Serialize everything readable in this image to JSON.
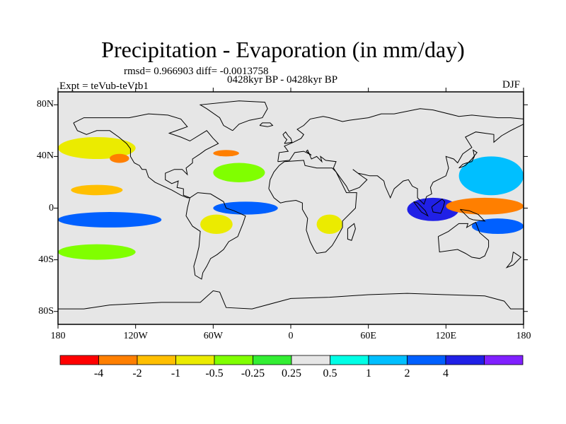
{
  "title": "Precipitation - Evaporation (in mm/day)",
  "stats_text": "rmsd= 0.966903 diff= -0.0013758",
  "period_text": "0428kyr BP - 0428kyr BP",
  "experiment_text": "Expt = teVub-teVtb1",
  "season_text": "DJF",
  "map": {
    "background_color": "#e6e6e6",
    "coastline_color": "#000000",
    "lon_range": [
      -180,
      180
    ],
    "lat_range": [
      -90,
      90
    ],
    "x_ticks": [
      {
        "lon": -180,
        "label": "180"
      },
      {
        "lon": -120,
        "label": "120W"
      },
      {
        "lon": -60,
        "label": "60W"
      },
      {
        "lon": 0,
        "label": "0"
      },
      {
        "lon": 60,
        "label": "60E"
      },
      {
        "lon": 120,
        "label": "120E"
      },
      {
        "lon": 180,
        "label": "180"
      }
    ],
    "y_ticks": [
      {
        "lat": 80,
        "label": "80N"
      },
      {
        "lat": 40,
        "label": "40N"
      },
      {
        "lat": 0,
        "label": "0"
      },
      {
        "lat": -40,
        "label": "40S"
      },
      {
        "lat": -80,
        "label": "80S"
      }
    ]
  },
  "colorbar": {
    "colors": [
      "#ff0000",
      "#ff7f00",
      "#ffbf00",
      "#ebeb00",
      "#80ff00",
      "#33ee33",
      "#e6e6e6",
      "#00ffe6",
      "#00bfff",
      "#0060ff",
      "#2020e6",
      "#8020ff"
    ],
    "labels": [
      "-4",
      "-2",
      "-1",
      "-0.5",
      "-0.25",
      "0.25",
      "0.5",
      "1",
      "2",
      "4"
    ]
  },
  "chart_data": {
    "type": "heatmap",
    "title": "Precipitation - Evaporation (in mm/day)",
    "variable": "Precipitation - Evaporation",
    "units": "mm/day",
    "season": "DJF",
    "rmsd": 0.966903,
    "diff": -0.0013758,
    "levels": [
      -4,
      -2,
      -1,
      -0.5,
      -0.25,
      0.25,
      0.5,
      1,
      2,
      4
    ],
    "xlim": [
      -180,
      180
    ],
    "ylim": [
      -90,
      90
    ],
    "regions": [
      {
        "name": "pacific-itcz-south",
        "lon": [
          -180,
          -100
        ],
        "lat": [
          -15,
          -3
        ],
        "value": 3
      },
      {
        "name": "pacific-itcz-band",
        "lon": [
          -180,
          -90
        ],
        "lat": [
          2,
          8
        ],
        "value": 0.3
      },
      {
        "name": "east-pacific-dry",
        "lon": [
          -170,
          -130
        ],
        "lat": [
          10,
          18
        ],
        "value": -1.5
      },
      {
        "name": "south-pacific-green",
        "lon": [
          -180,
          -120
        ],
        "lat": [
          -40,
          -28
        ],
        "value": -0.5
      },
      {
        "name": "north-pacific-storm",
        "lon": [
          -180,
          -120
        ],
        "lat": [
          38,
          55
        ],
        "value": -0.7
      },
      {
        "name": "north-pacific-red",
        "lon": [
          -140,
          -125
        ],
        "lat": [
          35,
          42
        ],
        "value": -3
      },
      {
        "name": "atlantic-itcz",
        "lon": [
          -60,
          -10
        ],
        "lat": [
          -5,
          5
        ],
        "value": 3
      },
      {
        "name": "amazon-dry",
        "lon": [
          -70,
          -45
        ],
        "lat": [
          -20,
          -5
        ],
        "value": -0.7
      },
      {
        "name": "south-atlantic-cyan",
        "lon": [
          -40,
          10
        ],
        "lat": [
          -30,
          -15
        ],
        "value": 0.4
      },
      {
        "name": "north-atlantic-green",
        "lon": [
          -60,
          -20
        ],
        "lat": [
          20,
          35
        ],
        "value": -0.5
      },
      {
        "name": "north-atlantic-red",
        "lon": [
          -60,
          -40
        ],
        "lat": [
          40,
          45
        ],
        "value": -3
      },
      {
        "name": "europe-cyan",
        "lon": [
          -10,
          40
        ],
        "lat": [
          45,
          65
        ],
        "value": 0.4
      },
      {
        "name": "africa-wet",
        "lon": [
          20,
          40
        ],
        "lat": [
          -20,
          -5
        ],
        "value": -1
      },
      {
        "name": "indian-ocean-cyan",
        "lon": [
          40,
          100
        ],
        "lat": [
          -40,
          -20
        ],
        "value": 0.4
      },
      {
        "name": "maritime-continent-wet",
        "lon": [
          90,
          130
        ],
        "lat": [
          -10,
          8
        ],
        "value": 4
      },
      {
        "name": "west-pacific-dry",
        "lon": [
          120,
          180
        ],
        "lat": [
          -5,
          8
        ],
        "value": -3
      },
      {
        "name": "west-pacific-north-blue",
        "lon": [
          130,
          180
        ],
        "lat": [
          10,
          40
        ],
        "value": 1.5
      },
      {
        "name": "south-pacific-convergence",
        "lon": [
          140,
          180
        ],
        "lat": [
          -20,
          -8
        ],
        "value": 2
      }
    ]
  }
}
